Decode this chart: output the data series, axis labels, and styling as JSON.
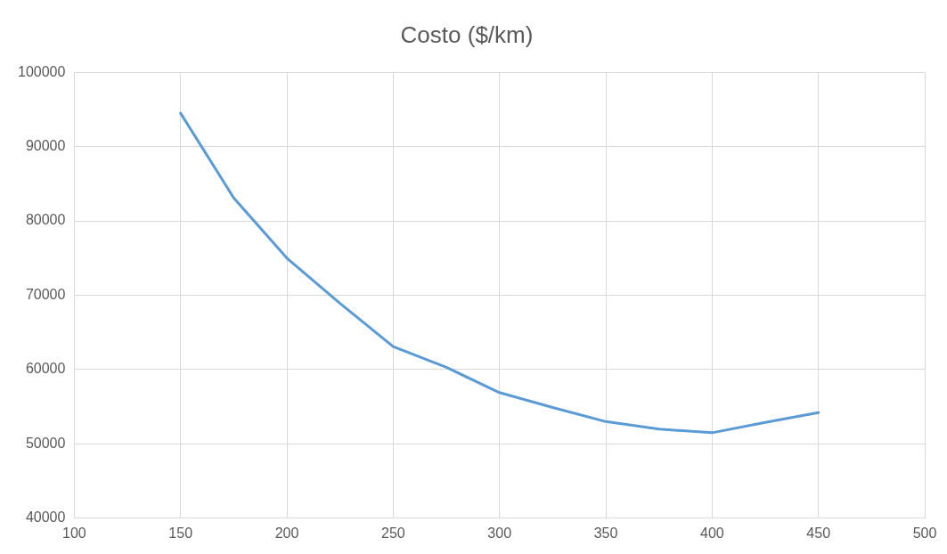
{
  "chart_data": {
    "type": "line",
    "title": "Costo ($/km)",
    "x": [
      150,
      175,
      200,
      225,
      250,
      275,
      300,
      325,
      350,
      375,
      400,
      425,
      450
    ],
    "series": [
      {
        "color": "#5b9bd5",
        "values": [
          94500,
          83100,
          75000,
          68900,
          63100,
          60300,
          56900,
          54900,
          53000,
          52000,
          51500,
          52900,
          54200
        ]
      }
    ],
    "xlim": [
      100,
      500
    ],
    "xticks": [
      100,
      150,
      200,
      250,
      300,
      350,
      400,
      450,
      500
    ],
    "ylim": [
      40000,
      100000
    ],
    "yticks": [
      40000,
      50000,
      60000,
      70000,
      80000,
      90000,
      100000
    ],
    "grid": true,
    "marker": "none",
    "line_style": "solid"
  }
}
